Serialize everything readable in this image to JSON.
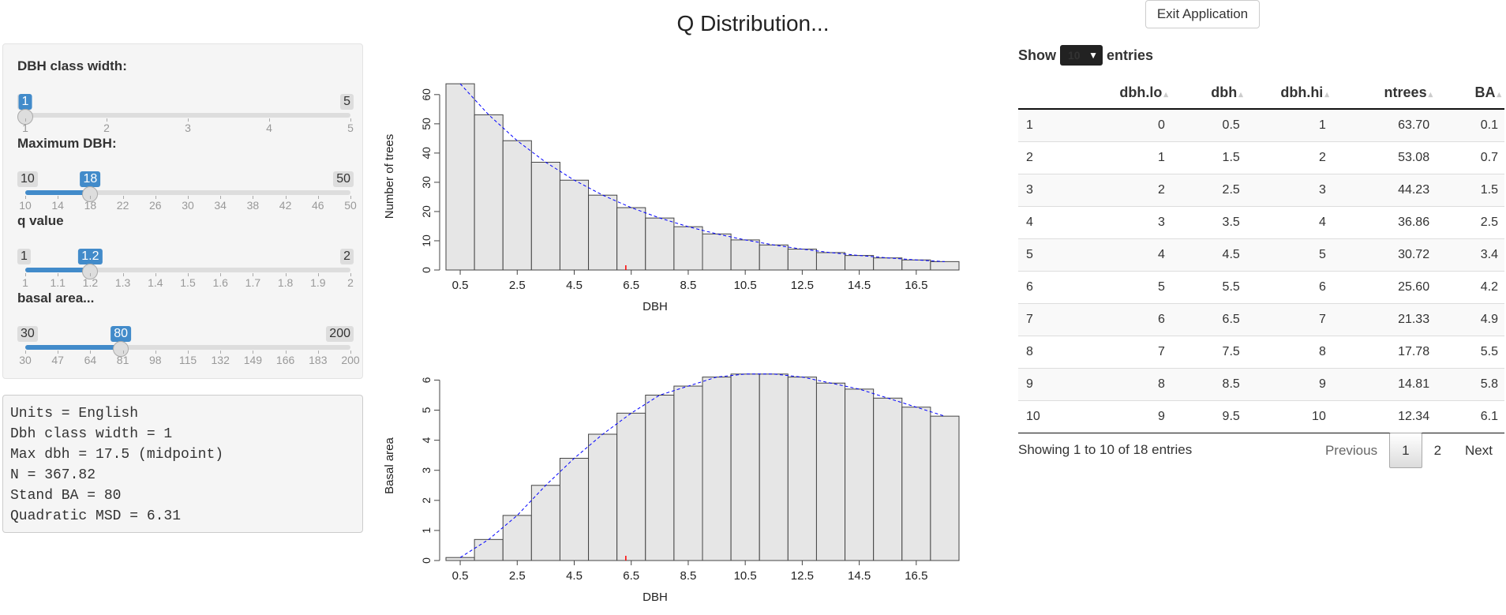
{
  "title": "Q Distribution...",
  "exit_button": "Exit Application",
  "sliders": [
    {
      "label": "DBH class width:",
      "min": 1,
      "max": 5,
      "value": 1,
      "min_label": "1",
      "max_label": "5",
      "value_label": "1",
      "ticks": [
        "1",
        "2",
        "3",
        "4",
        "5"
      ]
    },
    {
      "label": "Maximum DBH:",
      "min": 10,
      "max": 50,
      "value": 18,
      "min_label": "10",
      "max_label": "50",
      "value_label": "18",
      "ticks": [
        "10",
        "14",
        "18",
        "22",
        "26",
        "30",
        "34",
        "38",
        "42",
        "46",
        "50"
      ]
    },
    {
      "label": "q value",
      "min": 1,
      "max": 2,
      "value": 1.2,
      "min_label": "1",
      "max_label": "2",
      "value_label": "1.2",
      "ticks": [
        "1",
        "1.1",
        "1.2",
        "1.3",
        "1.4",
        "1.5",
        "1.6",
        "1.7",
        "1.8",
        "1.9",
        "2"
      ]
    },
    {
      "label": "basal area...",
      "min": 30,
      "max": 200,
      "value": 80,
      "min_label": "30",
      "max_label": "200",
      "value_label": "80",
      "ticks": [
        "30",
        "47",
        "64",
        "81",
        "98",
        "115",
        "132",
        "149",
        "166",
        "183",
        "200"
      ]
    }
  ],
  "summary": [
    "Units = English",
    "Dbh class width = 1",
    "Max dbh = 17.5 (midpoint)",
    "N = 367.82",
    "Stand BA = 80",
    "Quadratic MSD = 6.31"
  ],
  "table": {
    "show_label": "Show",
    "entries_label": "entries",
    "page_length": "10",
    "columns": [
      "",
      "dbh.lo",
      "dbh",
      "dbh.hi",
      "ntrees",
      "BA"
    ],
    "rows": [
      [
        "1",
        "0",
        "0.5",
        "1",
        "63.70",
        "0.1"
      ],
      [
        "2",
        "1",
        "1.5",
        "2",
        "53.08",
        "0.7"
      ],
      [
        "3",
        "2",
        "2.5",
        "3",
        "44.23",
        "1.5"
      ],
      [
        "4",
        "3",
        "3.5",
        "4",
        "36.86",
        "2.5"
      ],
      [
        "5",
        "4",
        "4.5",
        "5",
        "30.72",
        "3.4"
      ],
      [
        "6",
        "5",
        "5.5",
        "6",
        "25.60",
        "4.2"
      ],
      [
        "7",
        "6",
        "6.5",
        "7",
        "21.33",
        "4.9"
      ],
      [
        "8",
        "7",
        "7.5",
        "8",
        "17.78",
        "5.5"
      ],
      [
        "9",
        "8",
        "8.5",
        "9",
        "14.81",
        "5.8"
      ],
      [
        "10",
        "9",
        "9.5",
        "10",
        "12.34",
        "6.1"
      ]
    ],
    "info": "Showing 1 to 10 of 18 entries",
    "previous": "Previous",
    "pages": [
      "1",
      "2"
    ],
    "next": "Next"
  },
  "chart_data": [
    {
      "type": "bar",
      "x": [
        0.5,
        1.5,
        2.5,
        3.5,
        4.5,
        5.5,
        6.5,
        7.5,
        8.5,
        9.5,
        10.5,
        11.5,
        12.5,
        13.5,
        14.5,
        15.5,
        16.5,
        17.5
      ],
      "values": [
        63.7,
        53.08,
        44.23,
        36.86,
        30.72,
        25.6,
        21.33,
        17.78,
        14.81,
        12.34,
        10.29,
        8.57,
        7.14,
        5.95,
        4.96,
        4.13,
        3.44,
        2.87
      ],
      "xticks": [
        "0.5",
        "2.5",
        "4.5",
        "6.5",
        "8.5",
        "10.5",
        "12.5",
        "14.5",
        "16.5"
      ],
      "yticks": [
        "0",
        "10",
        "20",
        "30",
        "40",
        "50",
        "60"
      ],
      "ylim": [
        0,
        64
      ],
      "xlabel": "DBH",
      "ylabel": "Number of trees",
      "marker_x": 6.31,
      "curve_color": "#0000ff",
      "marker_color": "#ff0000",
      "bar_color": "#e6e6e6"
    },
    {
      "type": "bar",
      "x": [
        0.5,
        1.5,
        2.5,
        3.5,
        4.5,
        5.5,
        6.5,
        7.5,
        8.5,
        9.5,
        10.5,
        11.5,
        12.5,
        13.5,
        14.5,
        15.5,
        16.5,
        17.5
      ],
      "values": [
        0.1,
        0.7,
        1.5,
        2.5,
        3.4,
        4.2,
        4.9,
        5.5,
        5.8,
        6.1,
        6.2,
        6.2,
        6.1,
        5.9,
        5.7,
        5.4,
        5.1,
        4.8
      ],
      "xticks": [
        "0.5",
        "2.5",
        "4.5",
        "6.5",
        "8.5",
        "10.5",
        "12.5",
        "14.5",
        "16.5"
      ],
      "yticks": [
        "0",
        "1",
        "2",
        "3",
        "4",
        "5",
        "6"
      ],
      "ylim": [
        0,
        6.3
      ],
      "xlabel": "DBH",
      "ylabel": "Basal area",
      "marker_x": 6.31,
      "curve_color": "#0000ff",
      "marker_color": "#ff0000",
      "bar_color": "#e6e6e6"
    }
  ]
}
